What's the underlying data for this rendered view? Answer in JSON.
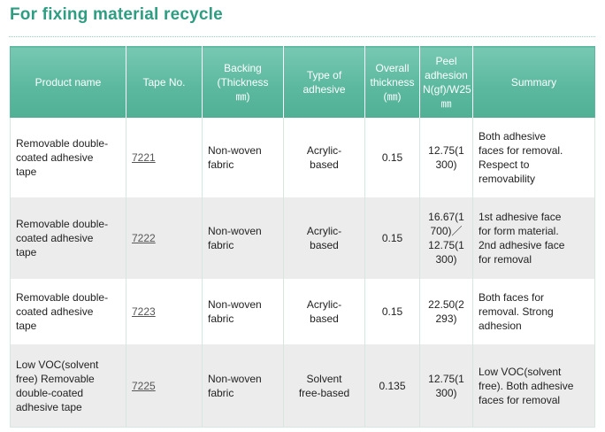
{
  "heading": "For fixing material recycle",
  "table": {
    "headers": [
      "Product name",
      "Tape No.",
      "Backing\n(Thickness\n㎜)",
      "Type of\nadhesive",
      "Overall\nthickness\n(㎜)",
      "Peel\nadhesion\nN(gf)/W25\n㎜",
      "Summary"
    ],
    "rows": [
      {
        "product": "Removable double-\ncoated adhesive\ntape",
        "tape_no": "7221",
        "backing": "Non-woven\nfabric",
        "adhesive": "Acrylic-\nbased",
        "thickness": "0.15",
        "peel": "12.75(1\n300)",
        "summary": "Both adhesive\nfaces for removal.\nRespect to\nremovability"
      },
      {
        "product": "Removable double-\ncoated adhesive\ntape",
        "tape_no": "7222",
        "backing": "Non-woven\nfabric",
        "adhesive": "Acrylic-\nbased",
        "thickness": "0.15",
        "peel": "16.67(1\n700)／\n12.75(1\n300)",
        "summary": "1st adhesive face\nfor form material.\n2nd adhesive face\nfor removal"
      },
      {
        "product": "Removable double-\ncoated adhesive\ntape",
        "tape_no": "7223",
        "backing": "Non-woven\nfabric",
        "adhesive": "Acrylic-\nbased",
        "thickness": "0.15",
        "peel": "22.50(2\n293)",
        "summary": "Both faces for\nremoval. Strong\nadhesion"
      },
      {
        "product": "Low VOC(solvent\nfree) Removable\ndouble-coated\nadhesive tape",
        "tape_no": "7225",
        "backing": "Non-woven\nfabric",
        "adhesive": "Solvent\nfree-based",
        "thickness": "0.135",
        "peel": "12.75(1\n300)",
        "summary": "Low VOC(solvent\nfree). Both adhesive\nfaces for removal"
      }
    ]
  },
  "colors": {
    "heading": "#2e9d82",
    "header_bg": "#5cb99f",
    "row_alt_bg": "#ececec"
  }
}
